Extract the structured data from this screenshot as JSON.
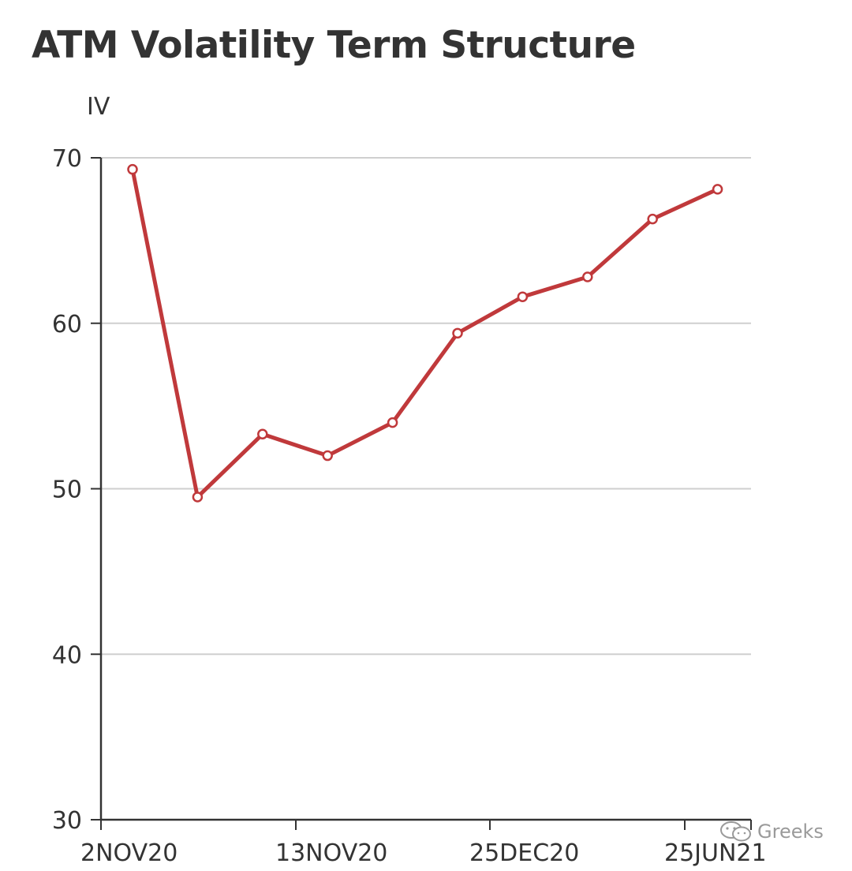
{
  "chart_data": {
    "type": "line",
    "title": "ATM Volatility Term Structure",
    "ylabel": "IV",
    "xlabel": "",
    "ylim": [
      30,
      70
    ],
    "yticks": [
      30,
      40,
      50,
      60,
      70
    ],
    "grid": true,
    "x_tick_labels": [
      "2NOV20",
      "13NOV20",
      "25DEC20",
      "25JUN21"
    ],
    "series": [
      {
        "color": "#c0393b",
        "values": [
          69.3,
          49.5,
          53.3,
          52.0,
          54.0,
          59.4,
          61.6,
          62.8,
          66.3,
          68.1
        ]
      }
    ]
  },
  "watermark": {
    "text": "Greeks",
    "icon": "wechat-icon"
  }
}
